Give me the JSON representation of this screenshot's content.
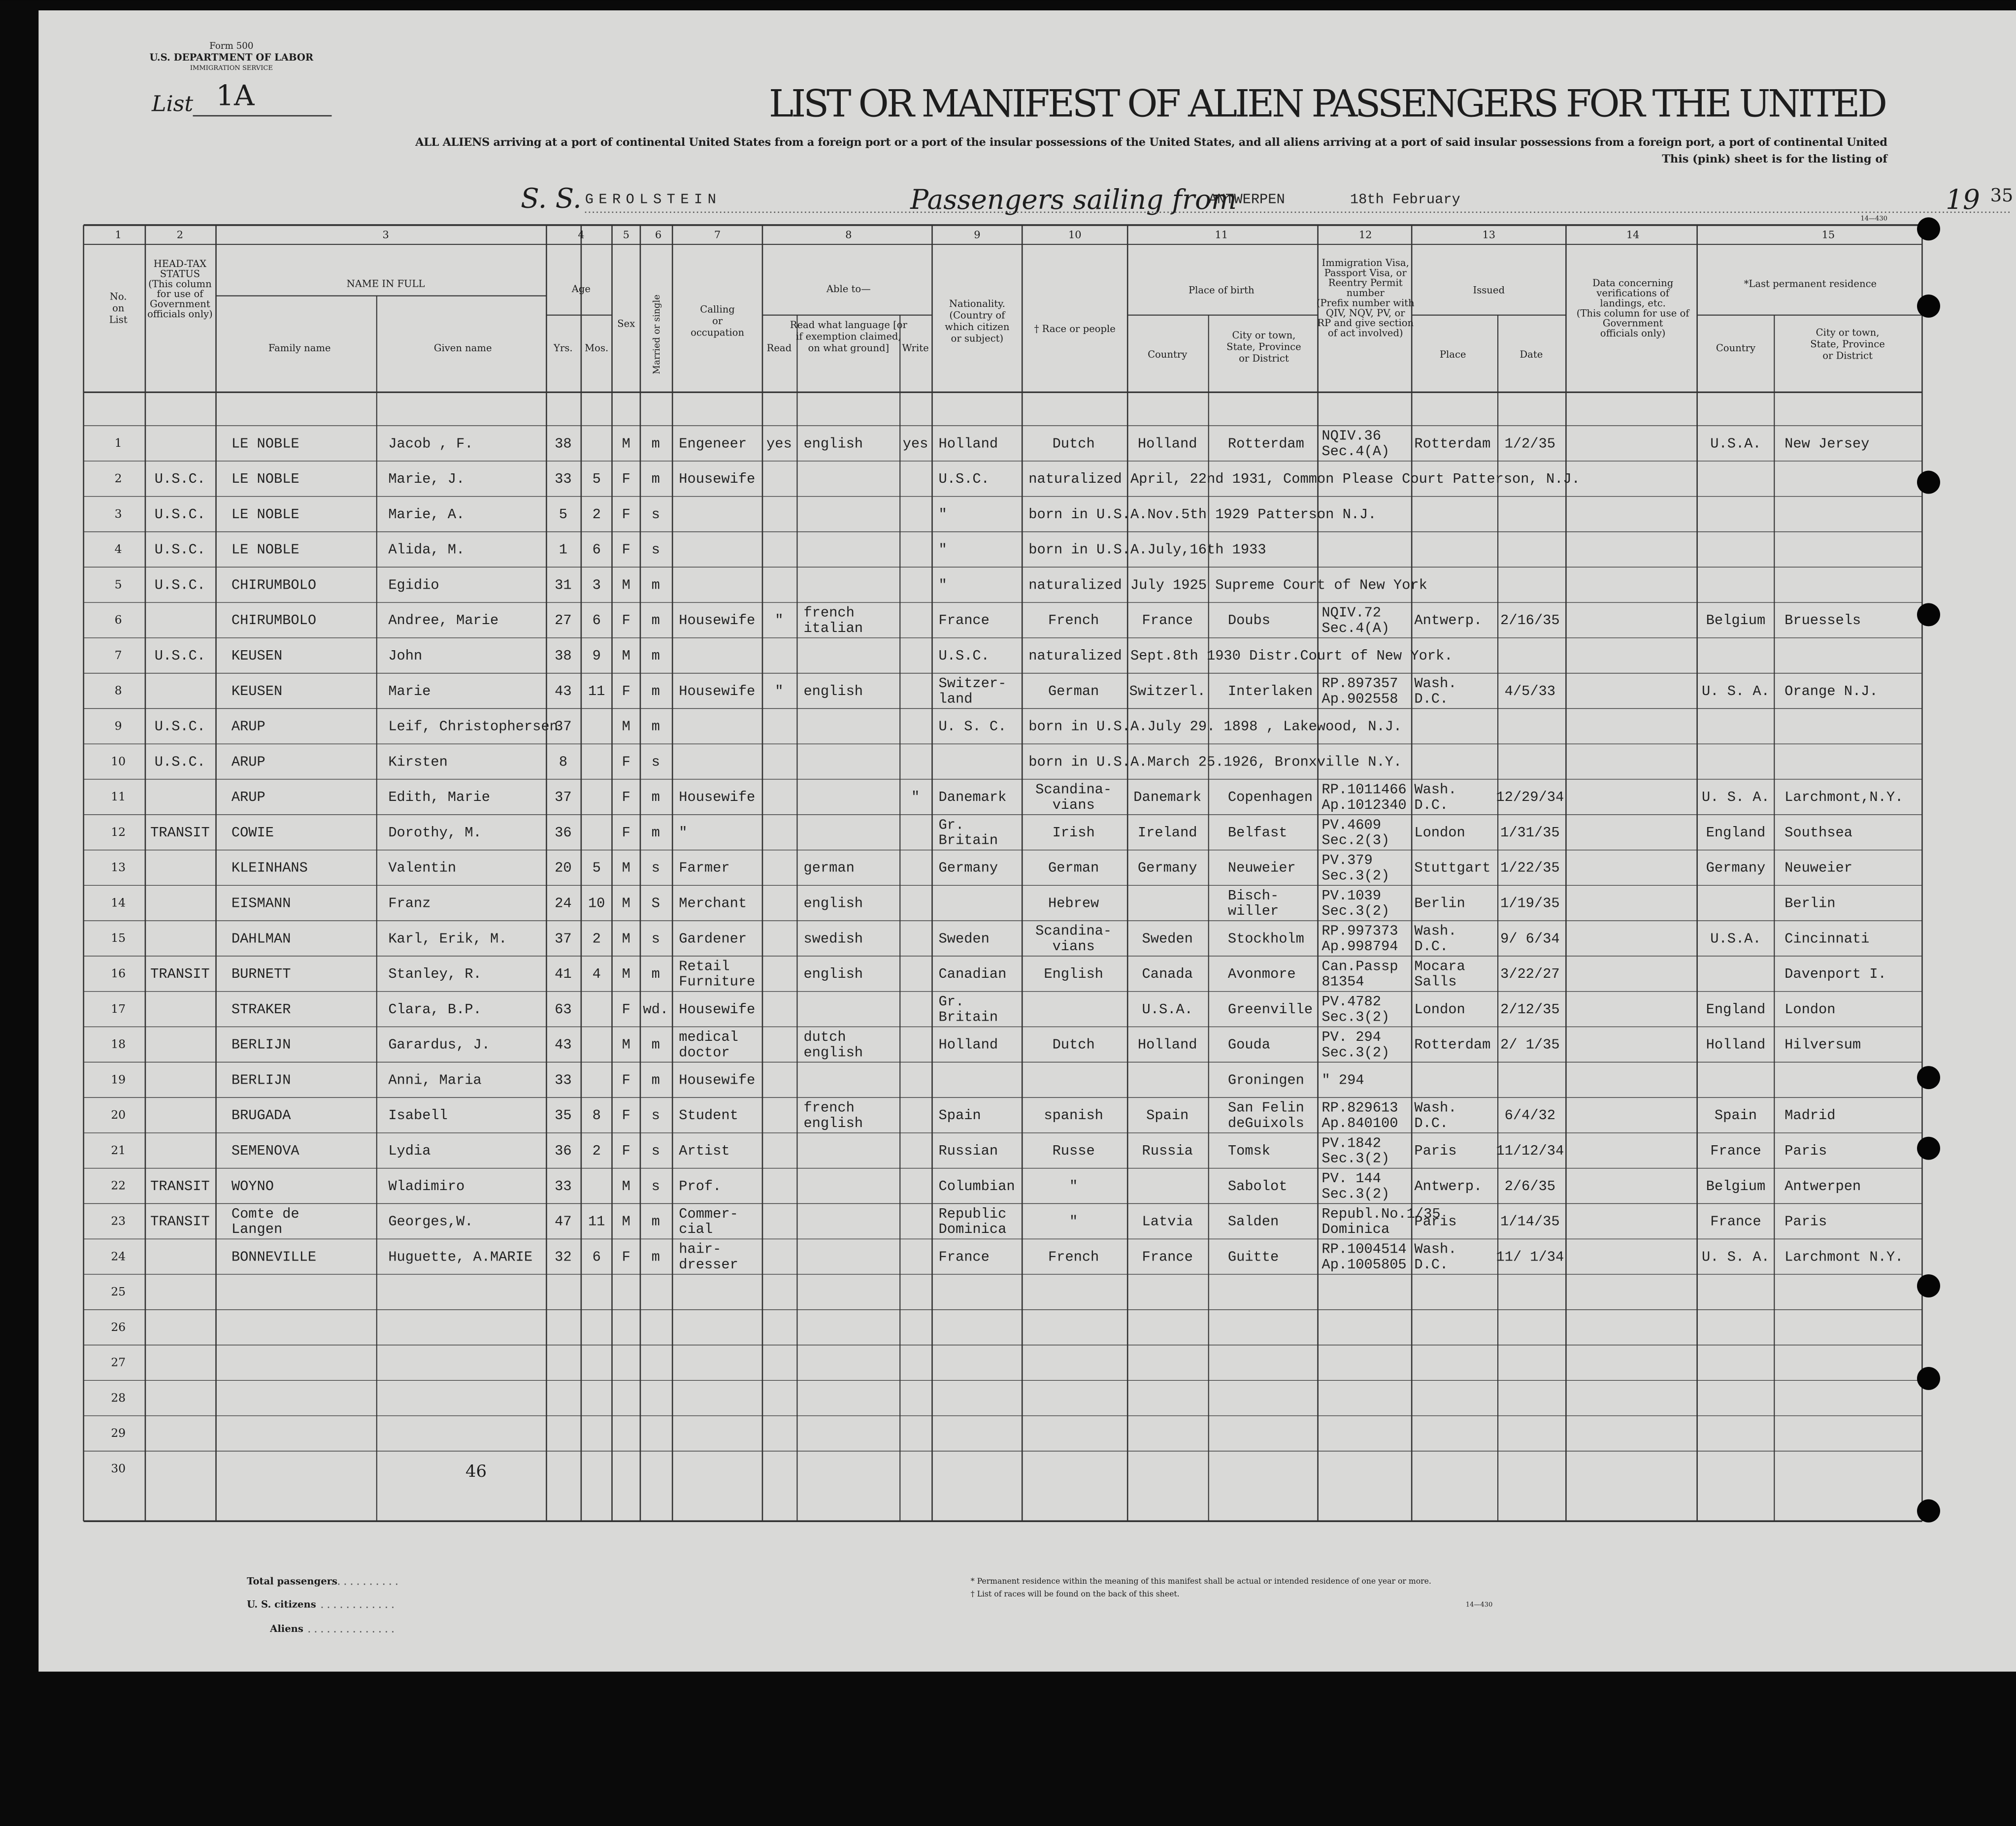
{
  "form": {
    "number": "Form 500",
    "department": "U.S. DEPARTMENT OF LABOR",
    "service": "IMMIGRATION SERVICE",
    "list_label": "List",
    "list_value": "1A",
    "code_top": "14—430"
  },
  "header": {
    "title": "LIST OR MANIFEST OF ALIEN PASSENGERS FOR THE UNITED",
    "line1": "ALL ALIENS arriving at a port of continental United States from a foreign port or a port of the insular possessions of the United States, and all aliens arriving at a port of said insular possessions from a foreign port, a port of continental United",
    "line2": "This (pink) sheet is for the listing of",
    "ss": "S. S.",
    "ship": "GEROLSTEIN",
    "sailing": "Passengers sailing from",
    "port": "ANTWERPEN",
    "date": "18th February",
    "year_prefix": "19",
    "year": "35"
  },
  "columns": {
    "numbers": [
      "1",
      "2",
      "3",
      "4",
      "5",
      "6",
      "7",
      "8",
      "9",
      "10",
      "11",
      "12",
      "13",
      "14",
      "15"
    ],
    "labels": {
      "no": [
        "No.",
        "on",
        "List"
      ],
      "tax": [
        "HEAD-TAX",
        "STATUS",
        "(This column",
        "for use of",
        "Government",
        "officials only)"
      ],
      "name": "NAME IN FULL",
      "family": "Family name",
      "given": "Given name",
      "age": "Age",
      "yrs": "Yrs.",
      "mos": "Mos.",
      "sex": "Sex",
      "ms": "Married or single",
      "occ": [
        "Calling",
        "or",
        "occupation"
      ],
      "able": "Able to—",
      "read": "Read",
      "lang": [
        "Read what language [or",
        "if exemption claimed,",
        "on what ground]"
      ],
      "write": "Write",
      "nat": [
        "Nationality.",
        "(Country of",
        "which citizen",
        "or subject)"
      ],
      "race": "† Race or people",
      "pob": "Place of birth",
      "bcountry": "Country",
      "bcity": [
        "City or town,",
        "State, Province",
        "or District"
      ],
      "visa": [
        "Immigration Visa,",
        "Passport Visa, or",
        "Reentry Permit",
        "number",
        "(Prefix number with",
        "QIV, NQV, PV, or",
        "RP and give section",
        "of act involved)"
      ],
      "issued": "Issued",
      "place": "Place",
      "date": "Date",
      "data": [
        "Data concerning",
        "verifications of",
        "landings, etc.",
        "(This column for use of",
        "Government",
        "officials only)"
      ],
      "res": "*Last permanent residence",
      "rcountry": "Country",
      "rcity": [
        "City or town,",
        "State, Province",
        "or District"
      ]
    }
  },
  "rows": [
    {
      "no": 1,
      "family": "LE NOBLE",
      "given": "Jacob , F.",
      "yrs": 38,
      "sex": "M",
      "ms": "m",
      "occ": "Engeneer",
      "read": "yes",
      "lang": "english",
      "write": "yes",
      "nat": "Holland",
      "race": "Dutch",
      "bcountry": "Holland",
      "bcity": "Rotterdam",
      "visa": [
        "NQIV.36",
        "Sec.4(A)"
      ],
      "place": "Rotterdam",
      "date": "1/2/35",
      "rcountry": "U.S.A.",
      "rcity": "New Jersey"
    },
    {
      "no": 2,
      "tax": "U.S.C.",
      "family": "LE NOBLE",
      "given": "Marie, J.",
      "yrs": 33,
      "mos": 5,
      "sex": "F",
      "ms": "m",
      "occ": "Housewife",
      "nat": "U.S.C.",
      "remark": "naturalized April, 22nd 1931, Common Please Court Patterson, N.J."
    },
    {
      "no": 3,
      "tax": "U.S.C.",
      "family": "LE NOBLE",
      "given": "Marie, A.",
      "yrs": 5,
      "mos": 2,
      "sex": "F",
      "ms": "s",
      "nat": "\"",
      "remark": "born in U.S.A.Nov.5th 1929 Patterson N.J."
    },
    {
      "no": 4,
      "tax": "U.S.C.",
      "family": "LE NOBLE",
      "given": "Alida, M.",
      "yrs": 1,
      "mos": 6,
      "sex": "F",
      "ms": "s",
      "nat": "\"",
      "remark": "born in U.S.A.July,16th 1933"
    },
    {
      "no": 5,
      "tax": "U.S.C.",
      "family": "CHIRUMBOLO",
      "given": "Egidio",
      "yrs": 31,
      "mos": 3,
      "sex": "M",
      "ms": "m",
      "nat": "\"",
      "remark": "naturalized July 1925 Supreme Court of New York"
    },
    {
      "no": 6,
      "family": "CHIRUMBOLO",
      "given": "Andree, Marie",
      "yrs": 27,
      "mos": 6,
      "sex": "F",
      "ms": "m",
      "occ": "Housewife",
      "read": "\"",
      "lang": [
        "french",
        "italian"
      ],
      "nat": "France",
      "race": "French",
      "bcountry": "France",
      "bcity": "Doubs",
      "visa": [
        "NQIV.72",
        "Sec.4(A)"
      ],
      "place": "Antwerp.",
      "date": "2/16/35",
      "rcountry": "Belgium",
      "rcity": "Bruessels"
    },
    {
      "no": 7,
      "tax": "U.S.C.",
      "family": "KEUSEN",
      "given": "John",
      "yrs": 38,
      "mos": 9,
      "sex": "M",
      "ms": "m",
      "nat": "U.S.C.",
      "remark": "naturalized Sept.8th 1930 Distr.Court of New York."
    },
    {
      "no": 8,
      "family": "KEUSEN",
      "given": "Marie",
      "yrs": 43,
      "mos": 11,
      "sex": "F",
      "ms": "m",
      "occ": "Housewife",
      "read": "\"",
      "lang": "english",
      "nat": [
        "Switzer-",
        "land"
      ],
      "race": "German",
      "bcountry": "Switzerl.",
      "bcity": "Interlaken",
      "visa": [
        "RP.897357",
        "Ap.902558"
      ],
      "place": [
        "Wash.",
        "D.C."
      ],
      "date": "4/5/33",
      "rcountry": "U. S. A.",
      "rcity": "Orange N.J."
    },
    {
      "no": 9,
      "tax": "U.S.C.",
      "family": "ARUP",
      "given": "Leif, Christophersen",
      "yrs": 37,
      "sex": "M",
      "ms": "m",
      "nat": "U. S. C.",
      "remark": "born in U.S.A.July 29. 1898 , Lakewood, N.J."
    },
    {
      "no": 10,
      "tax": "U.S.C.",
      "family": "ARUP",
      "given": "Kirsten",
      "yrs": 8,
      "sex": "F",
      "ms": "s",
      "remark": "born in U.S.A.March 25.1926, Bronxville N.Y."
    },
    {
      "no": 11,
      "family": "ARUP",
      "given": "Edith, Marie",
      "yrs": 37,
      "sex": "F",
      "ms": "m",
      "occ": "Housewife",
      "write": "\"",
      "nat": "Danemark",
      "race": [
        "Scandina-",
        "vians"
      ],
      "bcountry": "Danemark",
      "bcity": "Copenhagen",
      "visa": [
        "RP.1011466",
        "Ap.1012340"
      ],
      "place": [
        "Wash.",
        "D.C."
      ],
      "date": "12/29/34",
      "rcountry": "U. S. A.",
      "rcity": "Larchmont,N.Y."
    },
    {
      "no": 12,
      "tax": "TRANSIT",
      "family": "COWIE",
      "given": "Dorothy, M.",
      "yrs": 36,
      "sex": "F",
      "ms": "m",
      "occ": "\"",
      "nat": [
        "Gr.",
        "Britain"
      ],
      "race": "Irish",
      "bcountry": "Ireland",
      "bcity": "Belfast",
      "visa": [
        "PV.4609",
        "Sec.2(3)"
      ],
      "place": "London",
      "date": "1/31/35",
      "rcountry": "England",
      "rcity": "Southsea"
    },
    {
      "no": 13,
      "family": "KLEINHANS",
      "given": "Valentin",
      "yrs": 20,
      "mos": 5,
      "sex": "M",
      "ms": "s",
      "occ": "Farmer",
      "lang": "german",
      "nat": "Germany",
      "race": "German",
      "bcountry": "Germany",
      "bcity": "Neuweier",
      "visa": [
        "PV.379",
        "Sec.3(2)"
      ],
      "place": "Stuttgart",
      "date": "1/22/35",
      "rcountry": "Germany",
      "rcity": "Neuweier"
    },
    {
      "no": 14,
      "family": "EISMANN",
      "given": "Franz",
      "yrs": 24,
      "mos": 10,
      "sex": "M",
      "ms": "S",
      "occ": "Merchant",
      "lang": "english",
      "race": "Hebrew",
      "bcity": [
        "Bisch-",
        "willer"
      ],
      "visa": [
        "PV.1039",
        "Sec.3(2)"
      ],
      "place": "Berlin",
      "date": "1/19/35",
      "rcity": "Berlin"
    },
    {
      "no": 15,
      "family": "DAHLMAN",
      "given": "Karl, Erik, M.",
      "yrs": 37,
      "mos": 2,
      "sex": "M",
      "ms": "s",
      "occ": "Gardener",
      "lang": "swedish",
      "nat": "Sweden",
      "race": [
        "Scandina-",
        "vians"
      ],
      "bcountry": "Sweden",
      "bcity": "Stockholm",
      "visa": [
        "RP.997373",
        "Ap.998794"
      ],
      "place": [
        "Wash.",
        "D.C."
      ],
      "date": "9/ 6/34",
      "rcountry": "U.S.A.",
      "rcity": "Cincinnati"
    },
    {
      "no": 16,
      "tax": "TRANSIT",
      "family": "BURNETT",
      "given": "Stanley, R.",
      "yrs": 41,
      "mos": 4,
      "sex": "M",
      "ms": "m",
      "occ": [
        "Retail",
        "Furniture"
      ],
      "lang": "english",
      "nat": "Canadian",
      "race": "English",
      "bcountry": "Canada",
      "bcity": "Avonmore",
      "visa": [
        "Can.Passp",
        "81354"
      ],
      "place": [
        "Mocara",
        "Salls"
      ],
      "date": "3/22/27",
      "rcity": "Davenport I."
    },
    {
      "no": 17,
      "family": "STRAKER",
      "given": "Clara, B.P.",
      "yrs": 63,
      "sex": "F",
      "ms": "wd.",
      "occ": "Housewife",
      "nat": [
        "Gr.",
        "Britain"
      ],
      "bcountry": "U.S.A.",
      "bcity": "Greenville",
      "visa": [
        "PV.4782",
        "Sec.3(2)"
      ],
      "place": "London",
      "date": "2/12/35",
      "rcountry": "England",
      "rcity": "London"
    },
    {
      "no": 18,
      "family": "BERLIJN",
      "given": "Garardus, J.",
      "yrs": 43,
      "sex": "M",
      "ms": "m",
      "occ": [
        "medical",
        "doctor"
      ],
      "lang": [
        "dutch",
        "english"
      ],
      "nat": "Holland",
      "race": "Dutch",
      "bcountry": "Holland",
      "bcity": "Gouda",
      "visa": [
        "PV. 294",
        "Sec.3(2)"
      ],
      "place": "Rotterdam",
      "date": "2/ 1/35",
      "rcountry": "Holland",
      "rcity": "Hilversum"
    },
    {
      "no": 19,
      "family": "BERLIJN",
      "given": "Anni, Maria",
      "yrs": 33,
      "sex": "F",
      "ms": "m",
      "occ": "Housewife",
      "bcity": "Groningen",
      "visa": "\" 294"
    },
    {
      "no": 20,
      "family": "BRUGADA",
      "given": "Isabell",
      "yrs": 35,
      "mos": 8,
      "sex": "F",
      "ms": "s",
      "occ": "Student",
      "lang": [
        "french",
        "english"
      ],
      "nat": "Spain",
      "race": "spanish",
      "bcountry": "Spain",
      "bcity": [
        "San Felin",
        "deGuixols"
      ],
      "visa": [
        "RP.829613",
        "Ap.840100"
      ],
      "place": [
        "Wash.",
        "D.C."
      ],
      "date": "6/4/32",
      "rcountry": "Spain",
      "rcity": "Madrid"
    },
    {
      "no": 21,
      "family": "SEMENOVA",
      "given": "Lydia",
      "yrs": 36,
      "mos": 2,
      "sex": "F",
      "ms": "s",
      "occ": "Artist",
      "nat": "Russian",
      "race": "Russe",
      "bcountry": "Russia",
      "bcity": "Tomsk",
      "visa": [
        "PV.1842",
        "Sec.3(2)"
      ],
      "place": "Paris",
      "date": "11/12/34",
      "rcountry": "France",
      "rcity": "Paris"
    },
    {
      "no": 22,
      "tax": "TRANSIT",
      "family": "WOYNO",
      "given": "Wladimiro",
      "yrs": 33,
      "sex": "M",
      "ms": "s",
      "occ": "Prof.",
      "nat": "Columbian",
      "race": "\"",
      "bcity": "Sabolot",
      "visa": [
        "PV. 144",
        "Sec.3(2)"
      ],
      "place": "Antwerp.",
      "date": "2/6/35",
      "rcountry": "Belgium",
      "rcity": "Antwerpen"
    },
    {
      "no": 23,
      "tax": "TRANSIT",
      "family": [
        "Comte de",
        "Langen"
      ],
      "given": "Georges,W.",
      "yrs": 47,
      "mos": 11,
      "sex": "M",
      "ms": "m",
      "occ": [
        "Commer-",
        "cial"
      ],
      "nat": [
        "Republic",
        "Dominica"
      ],
      "race": "\"",
      "bcountry": "Latvia",
      "bcity": "Salden",
      "visa": [
        "Republ.No.1/35",
        "Dominica"
      ],
      "place": "Paris",
      "date": "1/14/35",
      "rcountry": "France",
      "rcity": "Paris"
    },
    {
      "no": 24,
      "family": "BONNEVILLE",
      "given": "Huguette, A.MARIE",
      "yrs": 32,
      "mos": 6,
      "sex": "F",
      "ms": "m",
      "occ": [
        "hair-",
        "dresser"
      ],
      "nat": "France",
      "race": "French",
      "bcountry": "France",
      "bcity": "Guitte",
      "visa": [
        "RP.1004514",
        "Ap.1005805"
      ],
      "place": [
        "Wash.",
        "D.C."
      ],
      "date": "11/ 1/34",
      "rcountry": "U. S. A.",
      "rcity": "Larchmont N.Y."
    },
    {
      "no": 25
    },
    {
      "no": 26
    },
    {
      "no": 27
    },
    {
      "no": 28
    },
    {
      "no": 29
    },
    {
      "no": 30
    }
  ],
  "footer": {
    "page": "46",
    "total": "Total passengers",
    "citizens": "U. S. citizens",
    "aliens": "Aliens",
    "note1": "* Permanent residence within the meaning of this manifest shall be actual or intended residence of one year or more.",
    "note2": "† List of races will be found on the back of this sheet.",
    "code": "14—430"
  }
}
